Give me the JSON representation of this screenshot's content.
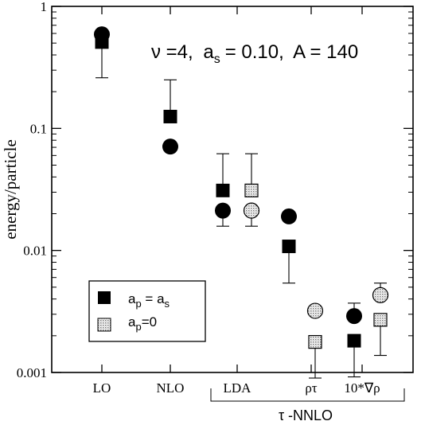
{
  "chart_data": {
    "type": "scatter",
    "ylabel": "energy/particle",
    "yscale": "log",
    "ylim": [
      0.001,
      1
    ],
    "ytick_labels": [
      "0.001",
      "0.01",
      "0.1",
      "1"
    ],
    "yticks": [
      0.001,
      0.01,
      0.1,
      1
    ],
    "categories": [
      "LO",
      "NLO",
      "LDA",
      "ρτ",
      "10*∇ρ"
    ],
    "group_label": "τ -NNLO",
    "annotation": {
      "nu": "ν =4,",
      "as_main": "a",
      "as_sub": "s",
      "as_rest": "= 0.10,",
      "A": "A = 140"
    },
    "legend": {
      "position": "lower-left",
      "items": [
        {
          "marker": "solid-square",
          "main": "a",
          "sub1": "p",
          "eq": " = a",
          "sub2": "s"
        },
        {
          "marker": "hatched-square",
          "main": "a",
          "sub1": "p",
          "eq": "=0",
          "sub2": ""
        }
      ]
    },
    "series": [
      {
        "marker": "solid-square",
        "points": [
          {
            "category": "LO",
            "y": 0.51,
            "err_low": 0.26,
            "err_high": 0.51
          },
          {
            "category": "NLO",
            "y": 0.125,
            "err_low": 0.125,
            "err_high": 0.25
          },
          {
            "category": "LDA",
            "y": 0.031,
            "err_low": 0.031,
            "err_high": 0.062
          },
          {
            "category": "ρτ",
            "y": 0.0108,
            "err_low": 0.0054,
            "err_high": 0.0108
          },
          {
            "category": "10*∇ρ",
            "y": 0.00182,
            "err_low": 0.00092,
            "err_high": 0.00182
          }
        ]
      },
      {
        "marker": "solid-circle",
        "points": [
          {
            "category": "LO",
            "y": 0.59
          },
          {
            "category": "NLO",
            "y": 0.071
          },
          {
            "category": "LDA",
            "y": 0.0212,
            "err_low": 0.0158,
            "err_high": 0.0212
          },
          {
            "category": "ρτ",
            "y": 0.019
          },
          {
            "category": "10*∇ρ",
            "y": 0.0029,
            "err_low": 0.0029,
            "err_high": 0.0037
          }
        ]
      },
      {
        "marker": "hatched-square",
        "points": [
          {
            "category": "LDA",
            "y": 0.031,
            "err_low": 0.031,
            "err_high": 0.062
          },
          {
            "category": "ρτ",
            "y": 0.00178,
            "err_low": 0.0009,
            "err_high": 0.00178
          },
          {
            "category": "10*∇ρ",
            "y": 0.0027,
            "err_low": 0.00138,
            "err_high": 0.0027
          }
        ]
      },
      {
        "marker": "hatched-circle",
        "points": [
          {
            "category": "LDA",
            "y": 0.0212,
            "err_low": 0.0158,
            "err_high": 0.0212
          },
          {
            "category": "ρτ",
            "y": 0.0032,
            "err_low": 0.0032,
            "err_high": 0.0032
          },
          {
            "category": "10*∇ρ",
            "y": 0.0043,
            "err_low": 0.0043,
            "err_high": 0.0054
          }
        ]
      }
    ]
  }
}
